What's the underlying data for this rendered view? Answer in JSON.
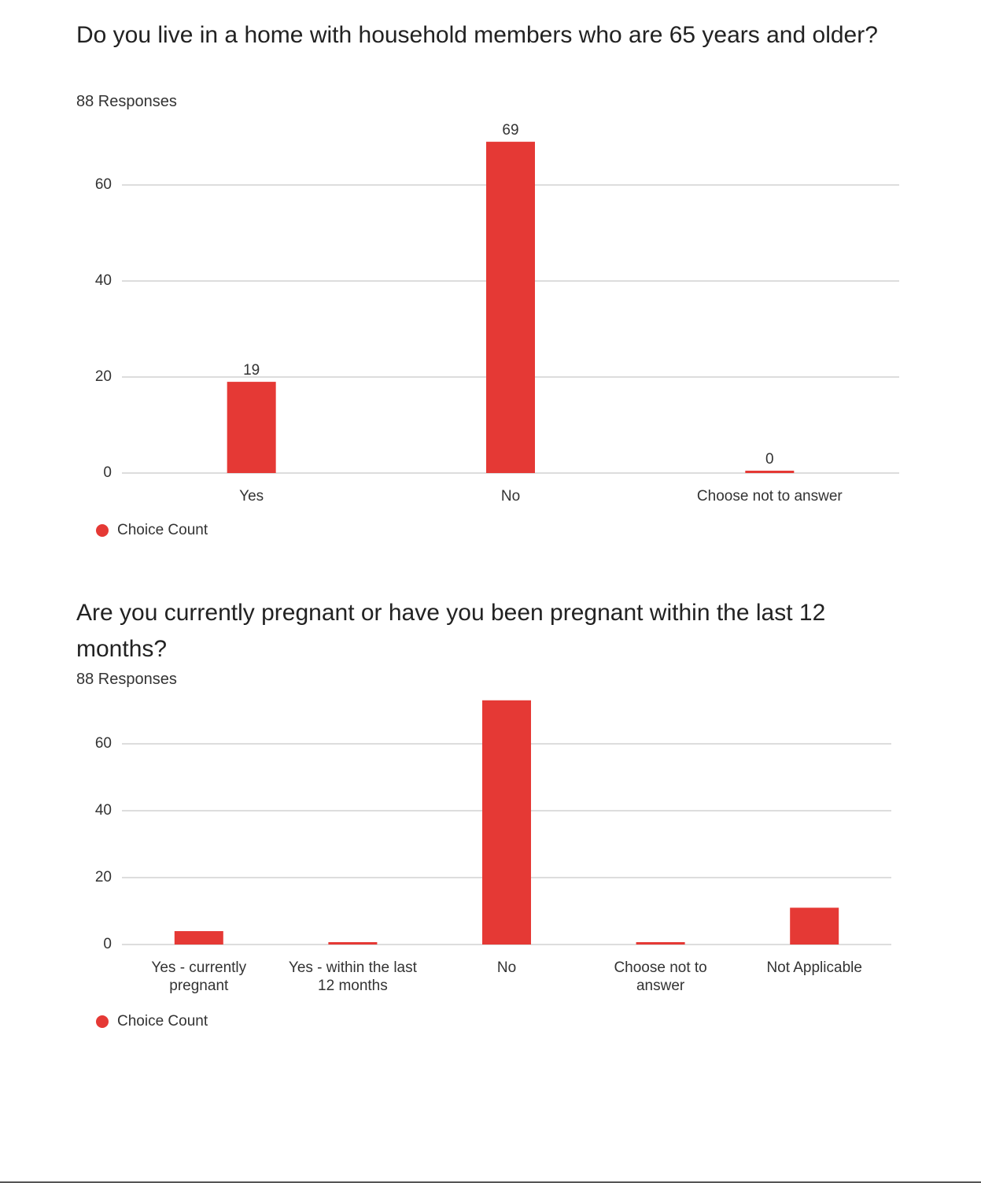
{
  "chart_data": [
    {
      "type": "bar",
      "title": "Do you live in a home with household members who are 65 years and older?",
      "subtitle": "88 Responses",
      "categories": [
        "Yes",
        "No",
        "Choose not to answer"
      ],
      "series": [
        {
          "name": "Choice Count",
          "color": "#e53935",
          "values": [
            19,
            69,
            0
          ]
        }
      ],
      "ylim": [
        0,
        70
      ],
      "yticks": [
        0,
        20,
        40,
        60
      ],
      "grid": true,
      "data_labels": true
    },
    {
      "type": "bar",
      "title": "Are you currently pregnant or have you been pregnant within the last 12 months?",
      "subtitle": "88 Responses",
      "categories": [
        "Yes - currently pregnant",
        "Yes - within the last 12 months",
        "No",
        "Choose not to answer",
        "Not Applicable"
      ],
      "series": [
        {
          "name": "Choice Count",
          "color": "#e53935",
          "values": [
            4,
            0,
            73,
            0,
            11
          ]
        }
      ],
      "ylim": [
        0,
        80
      ],
      "yticks": [
        0,
        20,
        40,
        60
      ],
      "grid": true,
      "data_labels": false
    }
  ]
}
